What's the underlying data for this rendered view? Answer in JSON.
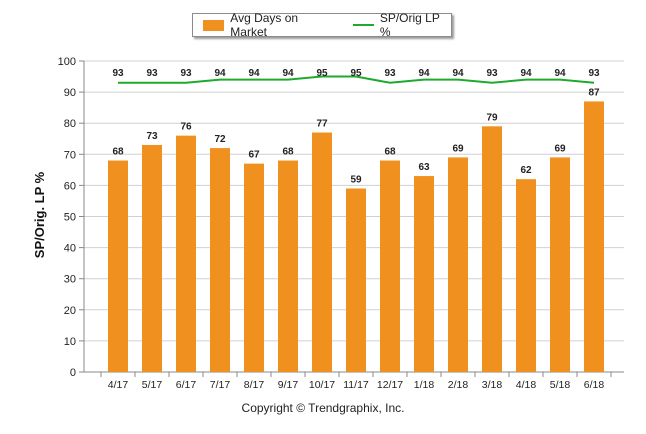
{
  "legend": {
    "bar_label": "Avg Days on Market",
    "line_label": "SP/Orig LP %"
  },
  "copyright": "Copyright © Trendgraphix, Inc.",
  "colors": {
    "bar": "#f0901e",
    "line": "#1eaa2c",
    "grid": "#d0d0d0"
  },
  "chart_data": {
    "type": "bar",
    "ylabel": "SP/Orig. LP %",
    "xlabel": "",
    "ylim": [
      0,
      100
    ],
    "yticks": [
      0,
      10,
      20,
      30,
      40,
      50,
      60,
      70,
      80,
      90,
      100
    ],
    "grid": true,
    "legend_position": "top-center",
    "categories": [
      "4/17",
      "5/17",
      "6/17",
      "7/17",
      "8/17",
      "9/17",
      "10/17",
      "11/17",
      "12/17",
      "1/18",
      "2/18",
      "3/18",
      "4/18",
      "5/18",
      "6/18"
    ],
    "series": [
      {
        "name": "Avg Days on Market",
        "type": "bar",
        "values": [
          68,
          73,
          76,
          72,
          67,
          68,
          77,
          59,
          68,
          63,
          69,
          79,
          62,
          69,
          87
        ]
      },
      {
        "name": "SP/Orig LP %",
        "type": "line",
        "values": [
          93,
          93,
          93,
          94,
          94,
          94,
          95,
          95,
          93,
          94,
          94,
          93,
          94,
          94,
          93
        ]
      }
    ]
  }
}
